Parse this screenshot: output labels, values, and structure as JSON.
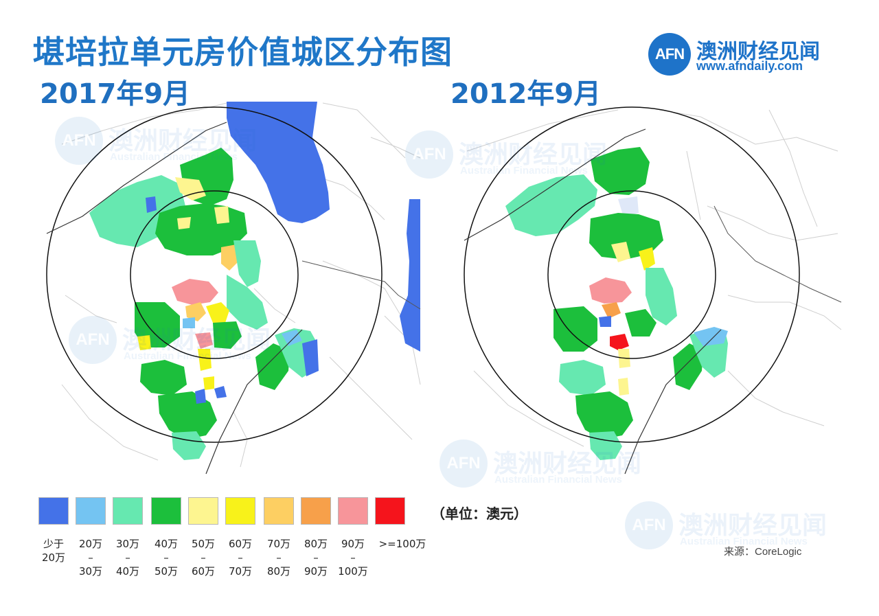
{
  "title": "堪培拉单元房价值城区分布图",
  "maps": {
    "left_label": "2017年9月",
    "right_label": "2012年9月"
  },
  "logo": {
    "mark": "AFN",
    "name": "澳洲财经见闻",
    "url": "www.afndaily.com"
  },
  "watermark": {
    "mark": "AFN",
    "text": "澳洲财经见闻",
    "sub": "Australian Financial News"
  },
  "legend": {
    "items": [
      {
        "label": "少于\n20万",
        "color": "#4472e8"
      },
      {
        "label": "20万\n–\n30万",
        "color": "#74c4f2"
      },
      {
        "label": "30万\n–\n40万",
        "color": "#66e8b0"
      },
      {
        "label": "40万\n–\n50万",
        "color": "#1cbf3c"
      },
      {
        "label": "50万\n–\n60万",
        "color": "#fdf590"
      },
      {
        "label": "60万\n–\n70万",
        "color": "#f8f21a"
      },
      {
        "label": "70万\n–\n80万",
        "color": "#fdcf62"
      },
      {
        "label": "80万\n–\n90万",
        "color": "#f7a04a"
      },
      {
        "label": "90万\n–\n100万",
        "color": "#f7959a"
      },
      {
        "label": ">=100万",
        "color": "#f5141c"
      }
    ],
    "unit": "（单位：澳元）"
  },
  "source": "来源：CoreLogic"
}
